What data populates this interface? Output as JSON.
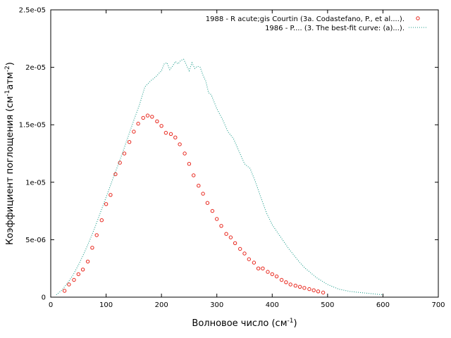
{
  "chart_data": {
    "type": "scatter",
    "xlabel": "Волновое число (см",
    "xlabel_sup": "-1",
    "xlabel_tail": ")",
    "ylabel": "Коэффициент поглощения (см",
    "ylabel_sup1": "-1",
    "ylabel_mid": "атм",
    "ylabel_sup2": "-2",
    "ylabel_tail": ")",
    "xlim": [
      0,
      700
    ],
    "ylim": [
      0,
      2.5e-05
    ],
    "x_ticks": [
      0,
      100,
      200,
      300,
      400,
      500,
      600,
      700
    ],
    "x_tick_labels": [
      "0",
      "100",
      "200",
      "300",
      "400",
      "500",
      "600",
      "700"
    ],
    "y_ticks": [
      0,
      5e-06,
      1e-05,
      1.5e-05,
      2e-05,
      2.5e-05
    ],
    "y_tick_labels": [
      "0",
      "5e-06",
      "1e-05",
      "1.5e-05",
      "2e-05",
      "2.5e-05"
    ],
    "legend_position": "top-right",
    "grid": false,
    "series": [
      {
        "name": "1988 - R  acute;gis Courtin (3a. Codastefano, P., et al....).",
        "style": "circles",
        "color": "#e8261c",
        "x": [
          25,
          33,
          42,
          50,
          58,
          67,
          75,
          83,
          92,
          100,
          108,
          117,
          125,
          133,
          142,
          150,
          158,
          167,
          175,
          183,
          192,
          200,
          208,
          217,
          225,
          233,
          242,
          250,
          258,
          267,
          275,
          283,
          292,
          300,
          308,
          317,
          325,
          333,
          342,
          350,
          358,
          367,
          375,
          383,
          392,
          400,
          408,
          417,
          425,
          433,
          442,
          450,
          458,
          467,
          475,
          483,
          492
        ],
        "y": [
          5.5e-07,
          1.1e-06,
          1.5e-06,
          2e-06,
          2.4e-06,
          3.1e-06,
          4.3e-06,
          5.4e-06,
          6.7e-06,
          8.1e-06,
          8.9e-06,
          1.07e-05,
          1.17e-05,
          1.25e-05,
          1.35e-05,
          1.44e-05,
          1.51e-05,
          1.56e-05,
          1.58e-05,
          1.57e-05,
          1.53e-05,
          1.49e-05,
          1.43e-05,
          1.42e-05,
          1.39e-05,
          1.33e-05,
          1.25e-05,
          1.16e-05,
          1.06e-05,
          9.7e-06,
          9e-06,
          8.2e-06,
          7.5e-06,
          6.8e-06,
          6.2e-06,
          5.5e-06,
          5.2e-06,
          4.7e-06,
          4.2e-06,
          3.8e-06,
          3.3e-06,
          3e-06,
          2.5e-06,
          2.5e-06,
          2.2e-06,
          2e-06,
          1.8e-06,
          1.5e-06,
          1.3e-06,
          1.1e-06,
          1e-06,
          9e-07,
          8e-07,
          7e-07,
          6e-07,
          5e-07,
          4e-07
        ]
      },
      {
        "name": "1986 - P.... (3. The best-fit curve: (a)...).",
        "style": "dotted-line",
        "color": "#1b9b8a",
        "x": [
          10,
          20,
          30,
          40,
          50,
          60,
          70,
          80,
          90,
          100,
          110,
          120,
          130,
          140,
          150,
          160,
          170,
          180,
          190,
          200,
          205,
          210,
          215,
          220,
          225,
          230,
          235,
          240,
          245,
          250,
          255,
          260,
          265,
          270,
          275,
          280,
          285,
          290,
          300,
          310,
          320,
          330,
          340,
          350,
          360,
          370,
          380,
          390,
          400,
          410,
          420,
          430,
          440,
          450,
          460,
          470,
          480,
          490,
          500,
          510,
          520,
          530,
          540,
          550,
          560,
          570,
          580,
          590,
          600
        ],
        "y": [
          2e-07,
          6e-07,
          1.2e-06,
          1.9e-06,
          2.8e-06,
          3.8e-06,
          4.9e-06,
          6.1e-06,
          7.4e-06,
          8.7e-06,
          1e-05,
          1.13e-05,
          1.26e-05,
          1.4e-05,
          1.54e-05,
          1.67e-05,
          1.83e-05,
          1.88e-05,
          1.92e-05,
          1.97e-05,
          2.03e-05,
          2.04e-05,
          1.98e-05,
          2.01e-05,
          2.05e-05,
          2.03e-05,
          2.06e-05,
          2.07e-05,
          2.02e-05,
          1.97e-05,
          2.04e-05,
          1.99e-05,
          2.01e-05,
          2e-05,
          1.93e-05,
          1.88e-05,
          1.78e-05,
          1.76e-05,
          1.64e-05,
          1.55e-05,
          1.44e-05,
          1.38e-05,
          1.27e-05,
          1.16e-05,
          1.12e-05,
          1e-05,
          8.6e-06,
          7.3e-06,
          6.3e-06,
          5.6e-06,
          4.9e-06,
          4.2e-06,
          3.6e-06,
          3e-06,
          2.5e-06,
          2.1e-06,
          1.7e-06,
          1.4e-06,
          1.1e-06,
          9e-07,
          7e-07,
          6e-07,
          5e-07,
          4.5e-07,
          4e-07,
          3.5e-07,
          3e-07,
          2.5e-07,
          2e-07
        ]
      }
    ]
  }
}
